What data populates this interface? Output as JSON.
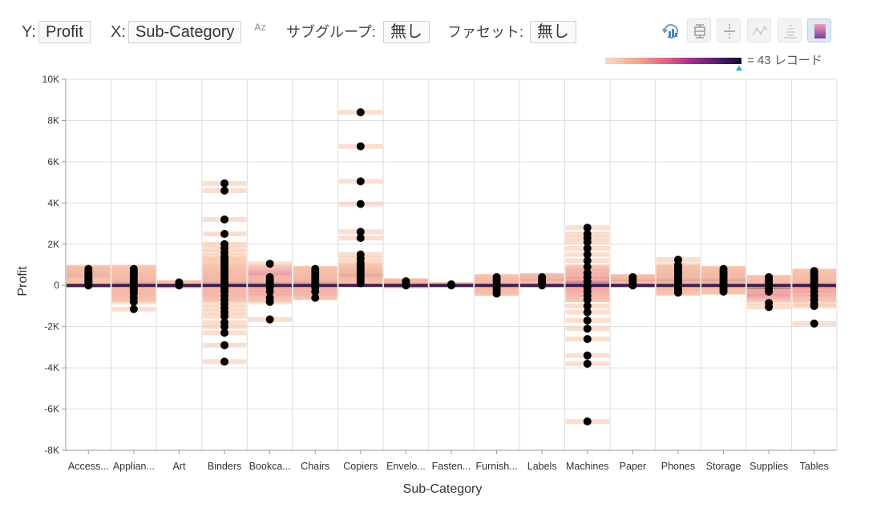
{
  "toolbar": {
    "y_label": "Y:",
    "y_value": "Profit",
    "x_label": "X:",
    "x_value": "Sub-Category",
    "sort_icon": "sort-az-icon",
    "subgroup_label": "サブグループ:",
    "subgroup_value": "無し",
    "facet_label": "ファセット:",
    "facet_value": "無し",
    "icons": [
      "refresh-chart-icon",
      "boxplot-icon",
      "error-bar-icon",
      "line-icon",
      "histogram-icon",
      "heatmap-color-icon"
    ]
  },
  "legend": {
    "text": "= 43 レコード",
    "gradient_colors": [
      "#f9d9c8",
      "#f3a58a",
      "#e0608a",
      "#9c2c8c",
      "#4b1a6b",
      "#1a0a2e"
    ]
  },
  "chart_data": {
    "type": "scatter",
    "xlabel": "Sub-Category",
    "ylabel": "Profit",
    "ylim": [
      -8000,
      10000
    ],
    "yticks": [
      -8000,
      -6000,
      -4000,
      -2000,
      0,
      2000,
      4000,
      6000,
      8000,
      10000
    ],
    "ytick_labels": [
      "-8K",
      "-6K",
      "-4K",
      "-2K",
      "0",
      "2K",
      "4K",
      "6K",
      "8K",
      "10K"
    ],
    "grid": true,
    "categories": [
      "Access...",
      "Applian...",
      "Art",
      "Binders",
      "Bookca...",
      "Chairs",
      "Copiers",
      "Envelo...",
      "Fasten...",
      "Furnish...",
      "Labels",
      "Machines",
      "Paper",
      "Phones",
      "Storage",
      "Supplies",
      "Tables"
    ],
    "points": [
      [
        0,
        0,
        50,
        100,
        150,
        200,
        250,
        300,
        350,
        400,
        500,
        600,
        700,
        800
      ],
      [
        -1150,
        -800,
        -600,
        -400,
        -300,
        -200,
        -100,
        0,
        100,
        200,
        300,
        400,
        500,
        600,
        700,
        800
      ],
      [
        0,
        50,
        100,
        150
      ],
      [
        -3700,
        -2900,
        -2300,
        -2000,
        -1800,
        -1500,
        -1300,
        -1100,
        -900,
        -700,
        -500,
        -300,
        -200,
        -100,
        0,
        100,
        200,
        300,
        400,
        500,
        600,
        700,
        800,
        900,
        1000,
        1100,
        1200,
        1300,
        1400,
        1600,
        1800,
        2000,
        2500,
        3200,
        4600,
        4950
      ],
      [
        -1650,
        -800,
        -600,
        -300,
        -100,
        0,
        100,
        200,
        300,
        400,
        1050
      ],
      [
        -600,
        -300,
        -100,
        0,
        100,
        200,
        300,
        400,
        500,
        600,
        700,
        800
      ],
      [
        100,
        200,
        300,
        400,
        500,
        600,
        700,
        800,
        900,
        1000,
        1100,
        1300,
        1500,
        2300,
        2600,
        3950,
        5050,
        6750,
        8400
      ],
      [
        0,
        100,
        200
      ],
      [
        0,
        50
      ],
      [
        -400,
        -300,
        -200,
        -100,
        0,
        100,
        200,
        300,
        400
      ],
      [
        0,
        100,
        200,
        300,
        400
      ],
      [
        -6600,
        -3800,
        -3400,
        -2600,
        -2100,
        -1700,
        -1300,
        -1000,
        -700,
        -500,
        -300,
        -100,
        0,
        200,
        400,
        600,
        900,
        1200,
        1500,
        1800,
        2100,
        2300,
        2500,
        2800
      ],
      [
        0,
        100,
        200,
        300,
        400
      ],
      [
        -350,
        -200,
        -100,
        0,
        100,
        200,
        300,
        400,
        500,
        600,
        700,
        800,
        900,
        1000,
        1250
      ],
      [
        -300,
        -200,
        -100,
        0,
        100,
        200,
        300,
        400,
        500,
        600,
        700,
        800
      ],
      [
        -1050,
        -850,
        -300,
        -150,
        0,
        100,
        200,
        300,
        400
      ],
      [
        -1850,
        -1000,
        -900,
        -700,
        -500,
        -300,
        -100,
        0,
        100,
        200,
        300,
        400,
        500,
        600,
        700
      ]
    ],
    "density_bands": [
      [
        -100,
        1000
      ],
      [
        -1300,
        1000
      ],
      [
        -150,
        250
      ],
      [
        -3800,
        5100
      ],
      [
        -1800,
        1200
      ],
      [
        -700,
        950
      ],
      [
        0,
        8500
      ],
      [
        -150,
        350
      ],
      [
        -50,
        150
      ],
      [
        -500,
        550
      ],
      [
        -50,
        600
      ],
      [
        -6700,
        3000
      ],
      [
        -50,
        550
      ],
      [
        -500,
        1350
      ],
      [
        -450,
        950
      ],
      [
        -1100,
        500
      ],
      [
        -2000,
        800
      ]
    ],
    "colors": {
      "point": "#000000",
      "band_light": "#f6c2a7",
      "band_mid": "#e0608a",
      "band_dark": "#2c0f45",
      "grid": "#dddddd",
      "axis": "#999999"
    }
  }
}
